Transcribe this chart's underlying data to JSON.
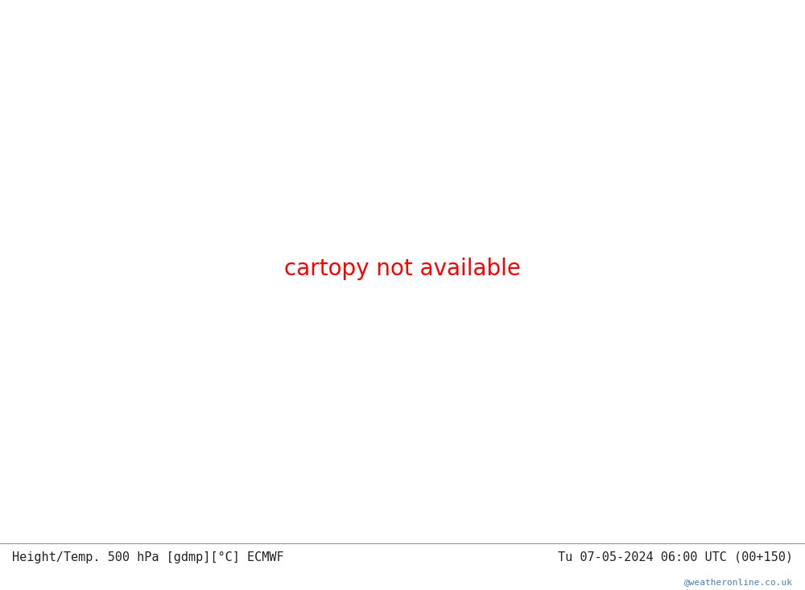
{
  "title_left": "Height/Temp. 500 hPa [gdmp][°C] ECMWF",
  "title_right": "Tu 07-05-2024 06:00 UTC (00+150)",
  "watermark": "@weatheronline.co.uk",
  "bg_ocean": "#d8d8d8",
  "bg_land": "#b8f0a0",
  "coastline_color": "#888888",
  "border_color": "#888888",
  "fig_width": 10.0,
  "fig_height": 7.33,
  "dpi": 100,
  "bottom_text_color": "#222222",
  "watermark_color": "#4080c0",
  "extent": [
    80,
    180,
    -20,
    60
  ],
  "height_contour_color": "#000000",
  "temp_colors": {
    "cyan": "#00b8b8",
    "yellow_green": "#88cc00",
    "orange": "#dd8800",
    "red": "#dd2020"
  },
  "height_lines": {
    "536": {
      "lw": 1.5,
      "bold": false
    },
    "540": {
      "lw": 1.2,
      "bold": false
    },
    "544": {
      "lw": 1.5,
      "bold": false
    },
    "548": {
      "lw": 1.2,
      "bold": false
    },
    "552": {
      "lw": 2.0,
      "bold": true
    },
    "556": {
      "lw": 1.2,
      "bold": false
    },
    "560": {
      "lw": 1.2,
      "bold": false
    },
    "564": {
      "lw": 1.2,
      "bold": false
    },
    "568": {
      "lw": 1.2,
      "bold": false
    },
    "572": {
      "lw": 1.2,
      "bold": false
    },
    "576": {
      "lw": 1.2,
      "bold": false
    },
    "580": {
      "lw": 1.2,
      "bold": false
    },
    "584": {
      "lw": 1.2,
      "bold": false
    },
    "588": {
      "lw": 2.0,
      "bold": true
    }
  }
}
